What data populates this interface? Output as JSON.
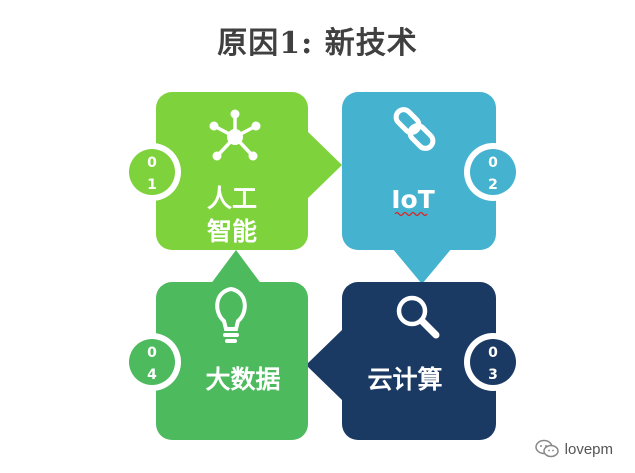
{
  "title": "原因1: 新技术",
  "colors": {
    "ai": "#7ED23C",
    "iot": "#45B3CF",
    "cloud": "#1B3A63",
    "bigdata": "#4DBA5E"
  },
  "quadrants": [
    {
      "key": "ai",
      "label_line1": "人工",
      "label_line2": "智能",
      "num_top": "0",
      "num_bottom": "1",
      "icon": "network-icon"
    },
    {
      "key": "iot",
      "label_line1": "IoT",
      "num_top": "0",
      "num_bottom": "2",
      "icon": "chain-link-icon"
    },
    {
      "key": "cloud",
      "label_line1": "云计算",
      "num_top": "0",
      "num_bottom": "3",
      "icon": "magnifier-icon"
    },
    {
      "key": "bigdata",
      "label_line1": "大数据",
      "num_top": "0",
      "num_bottom": "4",
      "icon": "lightbulb-icon"
    }
  ],
  "watermark": {
    "text": "lovepm",
    "icon": "wechat-icon"
  }
}
